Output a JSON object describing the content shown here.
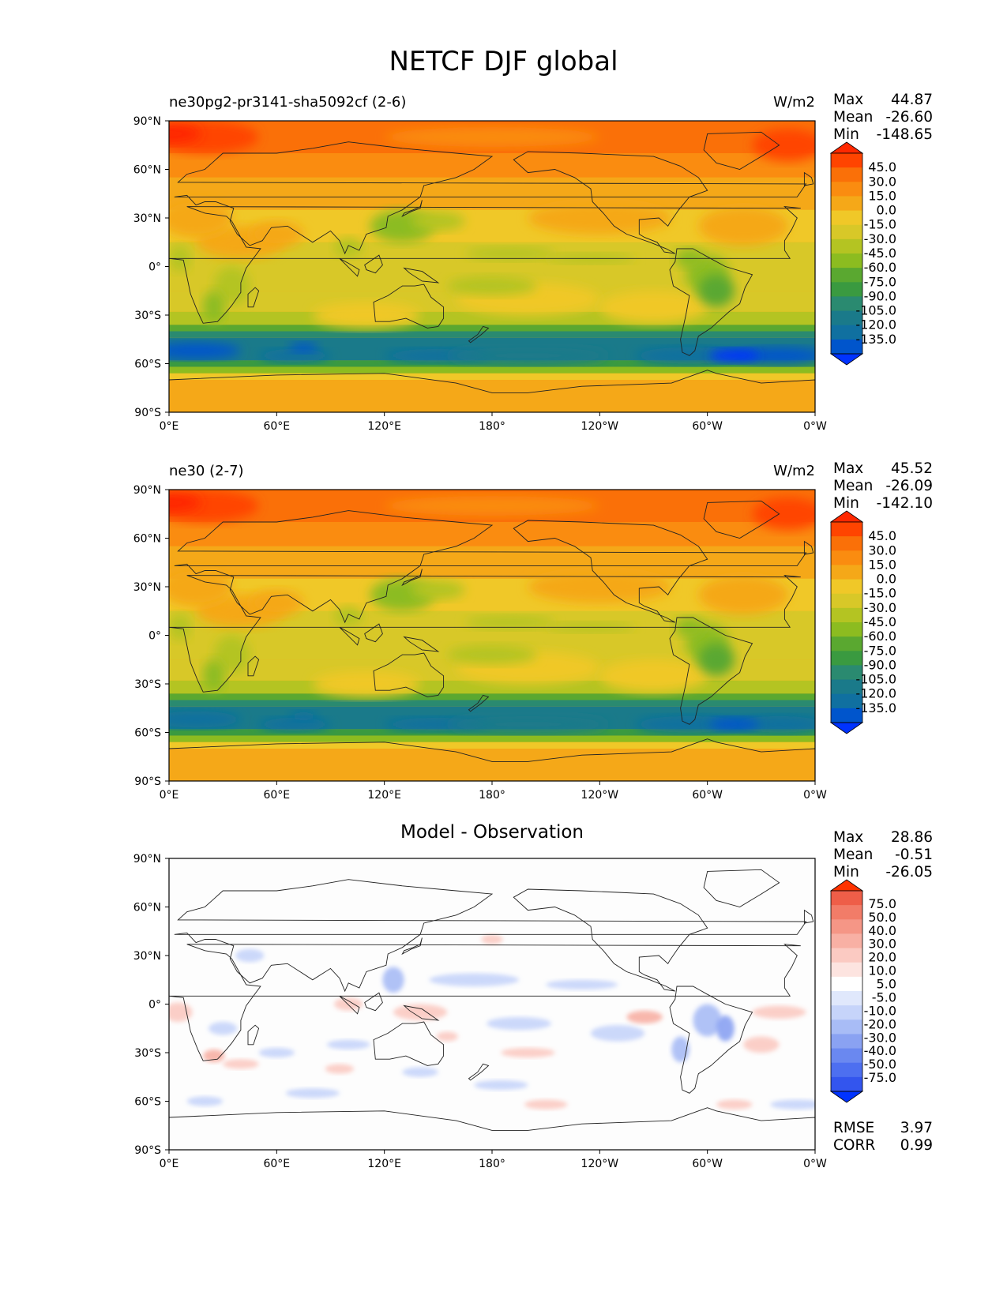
{
  "suptitle": "NETCF DJF global",
  "colors": {
    "seq": [
      "#0033ff",
      "#0055cc",
      "#1070a0",
      "#1a7a8a",
      "#2a8a70",
      "#3a9a40",
      "#5aa830",
      "#8cbc20",
      "#b4c422",
      "#d8c828",
      "#f0c828",
      "#f5a818",
      "#fa8c10",
      "#fa7008",
      "#ff4400",
      "#ff2800"
    ],
    "div": [
      "#0033ff",
      "#3355ee",
      "#4d6ff0",
      "#6a88f0",
      "#8aa2f2",
      "#a8bcf6",
      "#c6d4fa",
      "#e0e8fc",
      "#ffffff",
      "#fde4e0",
      "#fbcac2",
      "#f8b0a4",
      "#f59686",
      "#f27c68",
      "#ee5e48",
      "#ff3300"
    ]
  },
  "panels": [
    {
      "title_left": "ne30pg2-pr3141-sha5092cf (2-6)",
      "title_right": "W/m2",
      "stats": {
        "max_label": "Max",
        "max": "44.87",
        "mean_label": "Mean",
        "mean": "-26.60",
        "min_label": "Min",
        "min": "-148.65"
      }
    },
    {
      "title_left": "ne30 (2-7)",
      "title_right": "W/m2",
      "stats": {
        "max_label": "Max",
        "max": "45.52",
        "mean_label": "Mean",
        "mean": "-26.09",
        "min_label": "Min",
        "min": "-142.10"
      }
    },
    {
      "title_center": "Model - Observation",
      "stats": {
        "max_label": "Max",
        "max": "28.86",
        "mean_label": "Mean",
        "mean": "-0.51",
        "min_label": "Min",
        "min": "-26.05"
      },
      "rmse_label": "RMSE",
      "rmse": "3.97",
      "corr_label": "CORR",
      "corr": "0.99"
    }
  ],
  "chart_data": [
    {
      "type": "heatmap",
      "title": "ne30pg2-pr3141-sha5092cf (2-6)",
      "units": "W/m2",
      "x_ticks": [
        "0°E",
        "60°E",
        "120°E",
        "180°",
        "120°W",
        "60°W",
        "0°W"
      ],
      "y_ticks": [
        "90°N",
        "60°N",
        "30°N",
        "0°",
        "30°S",
        "60°S",
        "90°S"
      ],
      "colorbar": [
        "45.0",
        "30.0",
        "15.0",
        "0.0",
        "-15.0",
        "-30.0",
        "-45.0",
        "-60.0",
        "-75.0",
        "-90.0",
        "-105.0",
        "-120.0",
        "-135.0"
      ],
      "colorbar_extend": "both",
      "stats": {
        "max": 44.87,
        "mean": -26.6,
        "min": -148.65
      }
    },
    {
      "type": "heatmap",
      "title": "ne30 (2-7)",
      "units": "W/m2",
      "x_ticks": [
        "0°E",
        "60°E",
        "120°E",
        "180°",
        "120°W",
        "60°W",
        "0°W"
      ],
      "y_ticks": [
        "90°N",
        "60°N",
        "30°N",
        "0°",
        "30°S",
        "60°S",
        "90°S"
      ],
      "colorbar": [
        "45.0",
        "30.0",
        "15.0",
        "0.0",
        "-15.0",
        "-30.0",
        "-45.0",
        "-60.0",
        "-75.0",
        "-90.0",
        "-105.0",
        "-120.0",
        "-135.0"
      ],
      "colorbar_extend": "both",
      "stats": {
        "max": 45.52,
        "mean": -26.09,
        "min": -142.1
      }
    },
    {
      "type": "heatmap",
      "title": "Model - Observation",
      "x_ticks": [
        "0°E",
        "60°E",
        "120°E",
        "180°",
        "120°W",
        "60°W",
        "0°W"
      ],
      "y_ticks": [
        "90°N",
        "60°N",
        "30°N",
        "0°",
        "30°S",
        "60°S",
        "90°S"
      ],
      "colorbar": [
        "75.0",
        "50.0",
        "40.0",
        "30.0",
        "20.0",
        "10.0",
        "5.0",
        "-5.0",
        "-10.0",
        "-20.0",
        "-30.0",
        "-40.0",
        "-50.0",
        "-75.0"
      ],
      "colorbar_extend": "both",
      "stats": {
        "max": 28.86,
        "mean": -0.51,
        "min": -26.05
      },
      "rmse": 3.97,
      "corr": 0.99
    }
  ]
}
